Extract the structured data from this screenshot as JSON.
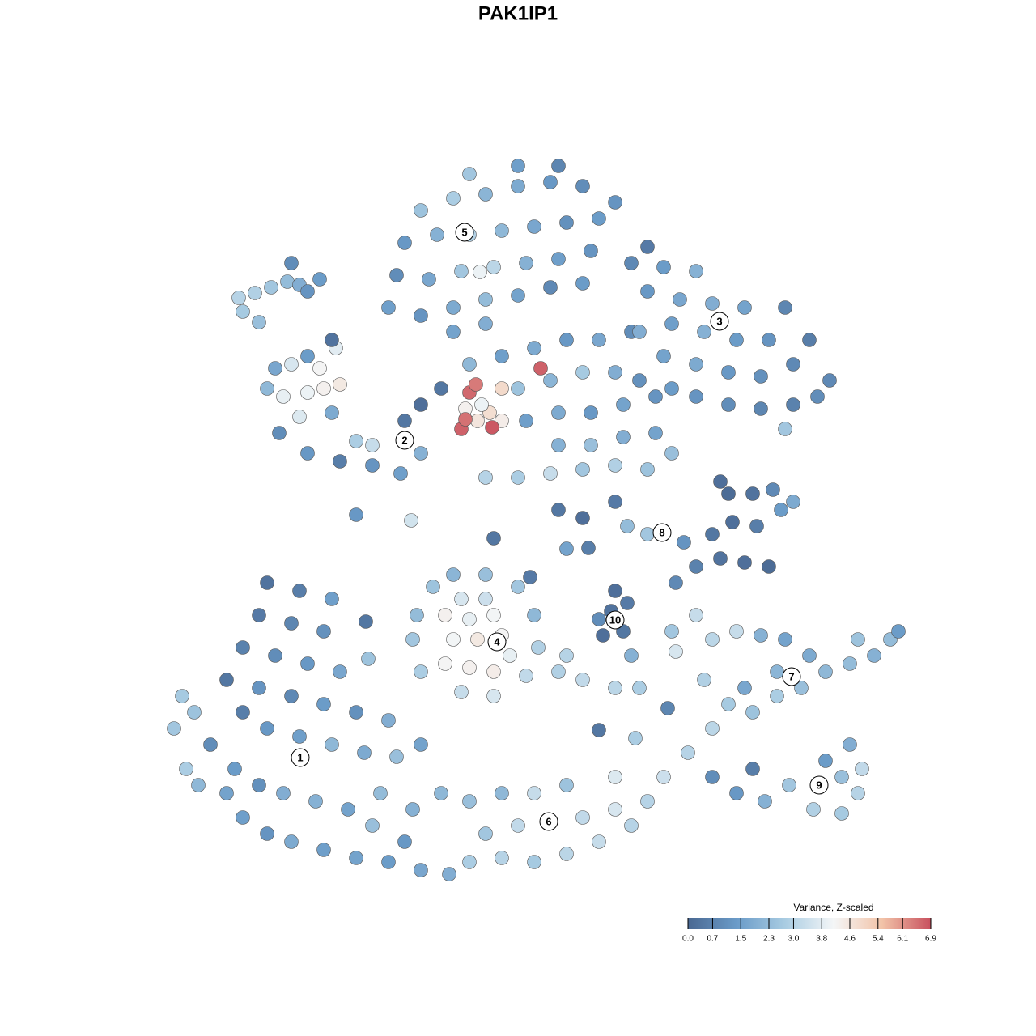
{
  "chart_data": {
    "type": "scatter",
    "title": "PAK1IP1",
    "xlim": [
      0,
      1280
    ],
    "ylim": [
      1280,
      0
    ],
    "x": [
      230,
      215,
      245,
      260,
      280,
      300,
      330,
      360,
      400,
      440,
      480,
      520,
      555,
      290,
      320,
      350,
      390,
      430,
      470,
      510,
      545,
      300,
      330,
      370,
      410,
      450,
      490,
      520,
      280,
      320,
      360,
      400,
      440,
      300,
      340,
      380,
      420,
      320,
      360,
      400,
      330,
      370,
      410,
      240,
      225,
      480,
      500,
      460,
      580,
      620,
      660,
      700,
      740,
      780,
      600,
      640,
      680,
      720,
      760,
      800,
      820,
      580,
      620,
      660,
      700,
      760,
      880,
      910,
      945,
      975,
      1005,
      1040,
      1060,
      1065,
      1040,
      930,
      1020,
      1050,
      850,
      880,
      900,
      930,
      960,
      990,
      1020,
      1050,
      1080,
      1100,
      1110,
      1060,
      1000,
      960,
      920,
      870,
      880,
      910,
      940,
      970,
      520,
      510,
      515,
      535,
      560,
      600,
      640,
      660,
      665,
      650,
      610,
      570,
      550,
      580,
      610,
      630,
      560,
      590,
      620,
      550,
      580,
      610,
      570,
      600,
      690,
      720,
      760,
      790,
      780,
      830,
      860,
      700,
      745,
      770,
      755,
      775,
      760,
      740,
      835,
      860,
      890,
      920,
      950,
      880,
      905,
      935,
      965,
      980,
      900,
      930,
      955,
      890,
      800,
      775,
      760,
      720,
      690,
      845,
      600,
      640,
      680,
      720,
      760,
      800,
      830,
      690,
      730,
      770,
      810,
      650,
      690,
      730,
      770,
      810,
      640,
      680,
      720,
      760,
      580,
      620,
      660,
      700,
      740,
      780,
      560,
      600,
      545,
      520,
      345,
      380,
      420,
      460,
      495,
      520,
      440,
      460,
      370,
      410,
      330,
      350,
      380,
      400,
      420,
      360,
      395,
      415,
      340,
      380,
      410,
      500,
      790,
      830,
      860,
      900,
      940,
      980,
      1010,
      1025,
      820,
      860,
      900,
      940,
      980,
      1000,
      790,
      830,
      870,
      910,
      950,
      970,
      800,
      840,
      880,
      920,
      780,
      820,
      860,
      800,
      480,
      520,
      560,
      600,
      640,
      680,
      720,
      490,
      530,
      570,
      610,
      650,
      690,
      730,
      500,
      540,
      580,
      620,
      660,
      700,
      740,
      520,
      560,
      600,
      640,
      680,
      720,
      760,
      580,
      640,
      690,
      593,
      295,
      315,
      335,
      355,
      370,
      380,
      360,
      395,
      300,
      320,
      740,
      785,
      825,
      835,
      455,
      452,
      508,
      440,
      655,
      610,
      727,
      700,
      970,
      590,
      605,
      620,
      575,
      620,
      595,
      570,
      575,
      608,
      580,
      588,
      668
    ],
    "y": [
      330,
      380,
      310,
      360,
      300,
      270,
      250,
      240,
      230,
      220,
      215,
      205,
      200,
      330,
      310,
      300,
      290,
      280,
      300,
      280,
      300,
      400,
      380,
      370,
      360,
      350,
      345,
      360,
      440,
      430,
      420,
      410,
      400,
      480,
      470,
      460,
      450,
      520,
      510,
      500,
      560,
      550,
      540,
      400,
      420,
      390,
      240,
      260,
      215,
      220,
      215,
      225,
      240,
      260,
      250,
      260,
      265,
      270,
      280,
      290,
      320,
      290,
      300,
      300,
      310,
      320,
      320,
      300,
      290,
      310,
      280,
      275,
      300,
      330,
      320,
      330,
      340,
      360,
      350,
      380,
      410,
      400,
      420,
      430,
      450,
      460,
      470,
      490,
      500,
      490,
      470,
      450,
      430,
      440,
      490,
      500,
      495,
      490,
      450,
      490,
      520,
      555,
      570,
      570,
      555,
      520,
      480,
      445,
      420,
      425,
      460,
      455,
      450,
      470,
      490,
      490,
      495,
      520,
      515,
      520,
      540,
      540,
      450,
      440,
      430,
      430,
      470,
      500,
      520,
      470,
      495,
      500,
      525,
      535,
      550,
      515,
      560,
      580,
      590,
      585,
      580,
      620,
      635,
      630,
      650,
      660,
      670,
      670,
      675,
      685,
      620,
      630,
      660,
      640,
      650,
      610,
      690,
      690,
      695,
      700,
      705,
      700,
      720,
      730,
      730,
      740,
      745,
      760,
      770,
      770,
      780,
      790,
      800,
      810,
      820,
      820,
      830,
      840,
      850,
      860,
      860,
      870,
      870,
      880,
      800,
      780,
      745,
      720,
      710,
      705,
      695,
      720,
      735,
      730,
      765,
      770,
      800,
      790,
      795,
      800,
      805,
      830,
      825,
      850,
      825,
      840,
      860,
      760,
      810,
      800,
      790,
      780,
      775,
      780,
      790,
      810,
      840,
      830,
      820,
      815,
      830,
      860,
      870,
      880,
      870,
      860,
      860,
      900,
      920,
      910,
      905,
      900,
      955,
      950,
      945,
      975,
      900,
      890,
      900,
      910,
      915,
      925,
      930,
      940,
      935,
      945,
      950,
      955,
      960,
      970,
      980,
      990,
      990,
      995,
      1000,
      1005,
      1010,
      1020,
      1035,
      1040,
      1050,
      1055,
      1050,
      1030,
      1065,
      1075,
      1075,
      944,
      912,
      918,
      925,
      932,
      928,
      920,
      955,
      935,
      895,
      882,
      378,
      368,
      405,
      475,
      466,
      512,
      637,
      644,
      567,
      615,
      603,
      602,
      750,
      760,
      770,
      760,
      775,
      800,
      780,
      750,
      762,
      752,
      795,
      805,
      825
    ],
    "values": [
      2.8,
      2.6,
      2.2,
      1.0,
      1.6,
      1.5,
      1.2,
      1.8,
      1.5,
      1.6,
      1.4,
      1.7,
      1.9,
      1.4,
      1.1,
      1.9,
      2.0,
      1.6,
      2.3,
      2.0,
      2.2,
      0.6,
      1.3,
      1.5,
      2.2,
      1.8,
      2.4,
      1.6,
      0.4,
      1.2,
      0.9,
      1.4,
      1.1,
      0.7,
      1.0,
      1.3,
      1.7,
      0.5,
      0.8,
      1.1,
      0.3,
      0.6,
      1.5,
      2.5,
      2.7,
      1.9,
      1.3,
      2.4,
      2.8,
      3.0,
      2.7,
      3.1,
      3.3,
      3.0,
      2.6,
      3.2,
      3.5,
      3.2,
      3.6,
      3.0,
      3.4,
      2.4,
      2.2,
      3.3,
      2.5,
      3.7,
      1.0,
      1.3,
      2.0,
      2.6,
      2.9,
      2.7,
      3.0,
      3.2,
      2.4,
      0.6,
      1.4,
      1.9,
      3.0,
      3.1,
      2.7,
      2.5,
      2.8,
      2.4,
      2.2,
      2.3,
      2.0,
      2.3,
      1.4,
      2.5,
      1.8,
      2.1,
      1.7,
      2.9,
      3.1,
      3.3,
      2.0,
      1.6,
      2.8,
      2.6,
      2.3,
      2.5,
      2.1,
      2.4,
      2.6,
      2.2,
      2.9,
      3.2,
      3.6,
      3.3,
      4.2,
      4.3,
      4.4,
      3.9,
      4.1,
      4.5,
      4.2,
      4.3,
      3.9,
      4.1,
      3.6,
      3.4,
      2.9,
      3.2,
      3.1,
      2.8,
      2.0,
      2.6,
      3.3,
      3.0,
      0.2,
      0.4,
      0.3,
      0.5,
      0.2,
      1.0,
      0.9,
      0.7,
      0.3,
      0.2,
      0.1,
      0.4,
      0.2,
      0.6,
      1.4,
      1.8,
      0.1,
      0.3,
      0.9,
      0.2,
      2.6,
      2.3,
      0.5,
      0.2,
      0.4,
      1.2,
      3.0,
      2.8,
      3.3,
      2.6,
      2.9,
      2.5,
      2.4,
      2.0,
      2.4,
      1.9,
      1.6,
      1.5,
      1.8,
      1.3,
      1.6,
      1.2,
      2.5,
      2.1,
      2.7,
      1.9,
      2.2,
      1.5,
      1.8,
      1.3,
      1.7,
      1.0,
      1.6,
      1.9,
      0.4,
      0.2,
      1.0,
      1.3,
      0.6,
      1.2,
      1.5,
      2.0,
      2.8,
      3.3,
      3.7,
      1.8,
      2.2,
      3.9,
      4.0,
      4.3,
      4.5,
      3.6,
      4.2,
      3.8,
      1.7,
      1.4,
      0.3,
      0.4,
      1.1,
      1.4,
      1.2,
      1.0,
      0.8,
      0.7,
      1.0,
      0.9,
      1.6,
      1.8,
      1.3,
      1.1,
      0.9,
      0.6,
      1.9,
      1.5,
      2.0,
      1.4,
      1.2,
      0.8,
      1.3,
      1.7,
      1.9,
      1.6,
      0.9,
      1.4,
      2.0,
      0.5,
      1.5,
      1.2,
      1.8,
      2.3,
      1.6,
      0.9,
      1.4,
      1.0,
      1.7,
      2.6,
      3.1,
      2.0,
      1.5,
      1.2,
      1.3,
      2.0,
      2.9,
      2.2,
      1.7,
      1.1,
      1.4,
      2.5,
      2.8,
      2.1,
      1.8,
      1.3,
      1.0,
      1.2,
      2.6,
      1.5,
      0.8,
      4.0,
      3.0,
      2.9,
      2.6,
      2.3,
      1.9,
      1.2,
      1.0,
      1.4,
      2.7,
      2.4,
      0.4,
      2.8,
      0.8,
      3.6,
      2.5,
      0.4,
      3.5,
      1.3,
      0.5,
      0.4,
      0.6,
      1.6,
      2.6,
      4.6,
      4.8,
      4.4,
      4.3,
      4.9,
      4.0,
      6.7,
      6.5,
      6.8,
      6.6,
      6.4,
      6.7
    ],
    "colorscale": [
      "#4a6892",
      "#6a9bc8",
      "#a9cce2",
      "#f4f6f7",
      "#f2c3a8",
      "#c8505e"
    ],
    "zlim": [
      0,
      6.9
    ],
    "colorbar_title": "Variance, Z-scaled",
    "zticks": [
      {
        "value": 0,
        "label": "0.0"
      },
      0.7,
      1.5,
      2.3,
      {
        "value": 3,
        "label": "3.0"
      },
      3.8,
      4.6,
      5.4,
      6.1,
      6.9
    ],
    "cluster_labels": {
      "labels": [
        "1",
        "6",
        "9",
        "7",
        "4",
        "10",
        "8",
        "2",
        "3",
        "5"
      ],
      "x": [
        371,
        678,
        1012,
        978,
        614,
        760,
        818,
        500,
        889,
        574
      ],
      "y": [
        344,
        265,
        310,
        444,
        487,
        514,
        622,
        736,
        883,
        993
      ]
    }
  }
}
